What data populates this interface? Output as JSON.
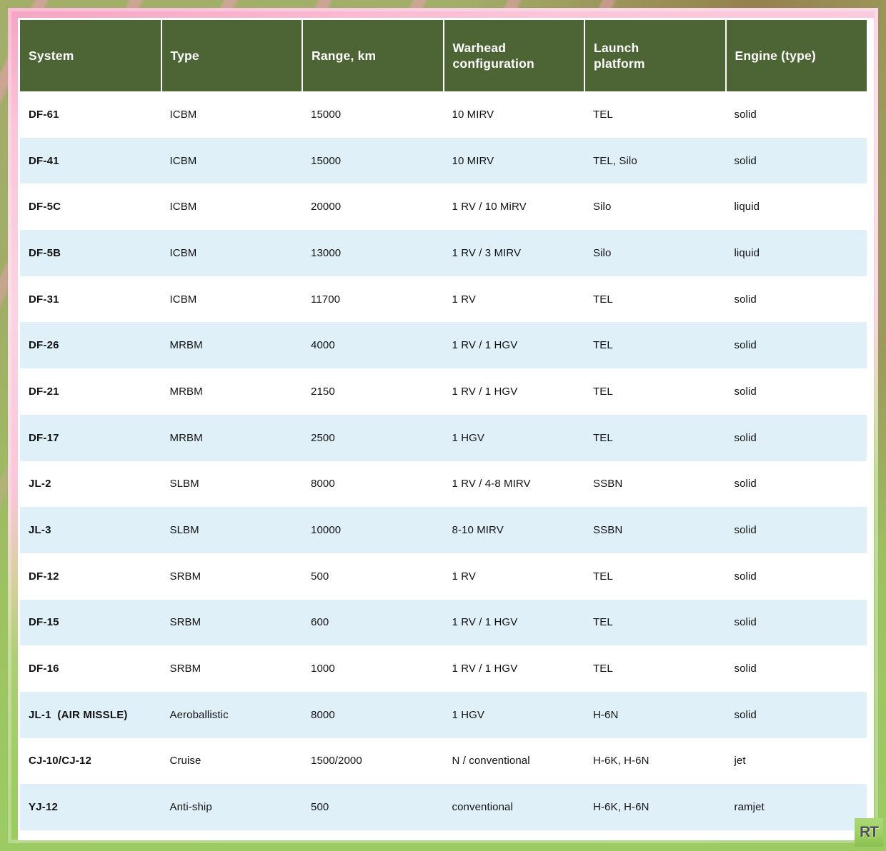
{
  "chart_data": {
    "type": "table",
    "title": "",
    "columns": [
      {
        "key": "system",
        "label": "System"
      },
      {
        "key": "type",
        "label": "Type"
      },
      {
        "key": "range_km",
        "label": "Range, km"
      },
      {
        "key": "warhead",
        "label": "Warhead\nconfiguration"
      },
      {
        "key": "platform",
        "label": "Launch\nplatform"
      },
      {
        "key": "engine",
        "label": "Engine (type)"
      }
    ],
    "rows": [
      {
        "cells": [
          "DF-61",
          "ICBM",
          "15000",
          "10 MIRV",
          "TEL",
          "solid"
        ]
      },
      {
        "cells": [
          "DF-41",
          "ICBM",
          "15000",
          "10 MIRV",
          "TEL, Silo",
          "solid"
        ]
      },
      {
        "cells": [
          "DF-5C",
          "ICBM",
          "20000",
          "1 RV / 10 MiRV",
          "Silo",
          "liquid"
        ]
      },
      {
        "cells": [
          "DF-5B",
          "ICBM",
          "13000",
          "1 RV / 3 MIRV",
          "Silo",
          "liquid"
        ]
      },
      {
        "cells": [
          "DF-31",
          "ICBM",
          "11700",
          "1 RV",
          "TEL",
          "solid"
        ]
      },
      {
        "cells": [
          "DF-26",
          "MRBM",
          "4000",
          "1 RV / 1 HGV",
          "TEL",
          "solid"
        ]
      },
      {
        "cells": [
          "DF-21",
          "MRBM",
          "2150",
          "1 RV / 1 HGV",
          "TEL",
          "solid"
        ]
      },
      {
        "cells": [
          "DF-17",
          "MRBM",
          "2500",
          "1 HGV",
          "TEL",
          "solid"
        ]
      },
      {
        "cells": [
          "JL-2",
          "SLBM",
          "8000",
          "1 RV / 4-8 MIRV",
          "SSBN",
          "solid"
        ]
      },
      {
        "cells": [
          "JL-3",
          "SLBM",
          "10000",
          "8-10 MIRV",
          "SSBN",
          "solid"
        ]
      },
      {
        "cells": [
          "DF-12",
          "SRBM",
          "500",
          "1 RV",
          "TEL",
          "solid"
        ]
      },
      {
        "cells": [
          "DF-15",
          "SRBM",
          "600",
          "1 RV / 1 HGV",
          "TEL",
          "solid"
        ]
      },
      {
        "cells": [
          "DF-16",
          "SRBM",
          "1000",
          "1 RV / 1 HGV",
          "TEL",
          "solid"
        ]
      },
      {
        "cells": [
          "JL-1  (AIR MISSLE)",
          "Aeroballistic",
          "8000",
          "1 HGV",
          "H-6N",
          "solid"
        ]
      },
      {
        "cells": [
          "CJ-10/CJ-12",
          "Cruise",
          "1500/2000",
          "N / conventional",
          "H-6K, H-6N",
          "jet"
        ]
      },
      {
        "cells": [
          "YJ-12",
          "Anti-ship",
          "500",
          "conventional",
          "H-6K, H-6N",
          "ramjet"
        ]
      }
    ],
    "row_stripe_colors": [
      "#ffffff",
      "#e0f0f9"
    ],
    "header_bg": "#4d6435",
    "header_text_color": "#ffffff"
  },
  "logo": {
    "text": "RT"
  },
  "colors": {
    "header_green": "#4d6435",
    "row_alt_blue": "#e0f0f9",
    "frame_pink": "#f9c6d8",
    "frame_green": "#9ccb63",
    "logo_green": "#9ed060"
  }
}
